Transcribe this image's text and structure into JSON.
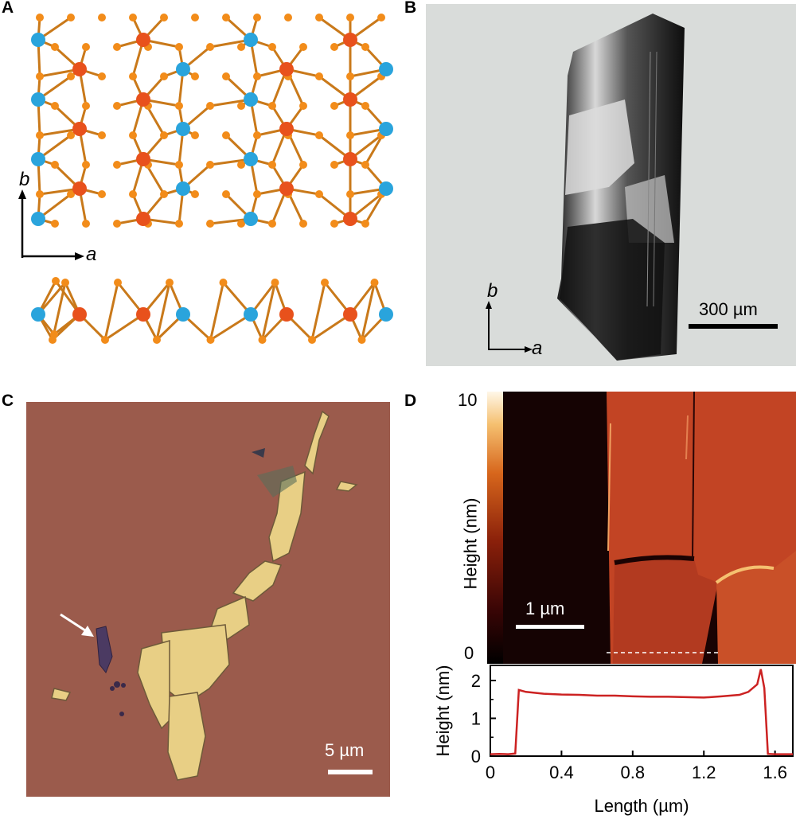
{
  "panels": {
    "a": {
      "letter": "A",
      "axis_b": "b",
      "axis_a": "a",
      "colors": {
        "metal_blue": "#2aa4dc",
        "metal_red": "#e8511c",
        "chalcogen": "#f28c1a",
        "bond": "#c9791a"
      }
    },
    "b": {
      "letter": "B",
      "axis_b": "b",
      "axis_a": "a",
      "scale_label": "300 µm"
    },
    "c": {
      "letter": "C",
      "scale_label": "5 µm",
      "background_color": "#9b5b4c",
      "flake_color": "#e8cf85"
    },
    "d": {
      "letter": "D",
      "colorbar_max": "10",
      "colorbar_min": "0",
      "colorbar_label": "Height (nm)",
      "scale_label": "1 µm"
    }
  },
  "chart_data": {
    "type": "line",
    "xlabel": "Length (µm)",
    "ylabel": "Height (nm)",
    "xlim": [
      0,
      1.7
    ],
    "ylim": [
      0,
      2.4
    ],
    "x_ticks": [
      "0",
      "0.4",
      "0.8",
      "1.2",
      "1.6"
    ],
    "y_ticks": [
      "0",
      "1",
      "2"
    ],
    "color": "#cc2222",
    "series": [
      {
        "x": [
          0,
          0.05,
          0.1,
          0.14,
          0.16,
          0.2,
          0.3,
          0.4,
          0.5,
          0.6,
          0.7,
          0.8,
          0.9,
          1.0,
          1.1,
          1.2,
          1.3,
          1.4,
          1.45,
          1.5,
          1.52,
          1.54,
          1.56,
          1.6,
          1.7
        ],
        "y": [
          0.05,
          0.06,
          0.05,
          0.07,
          1.75,
          1.7,
          1.65,
          1.63,
          1.62,
          1.6,
          1.6,
          1.58,
          1.57,
          1.57,
          1.56,
          1.55,
          1.58,
          1.62,
          1.7,
          1.9,
          2.3,
          1.8,
          0.06,
          0.05,
          0.05
        ]
      }
    ]
  }
}
